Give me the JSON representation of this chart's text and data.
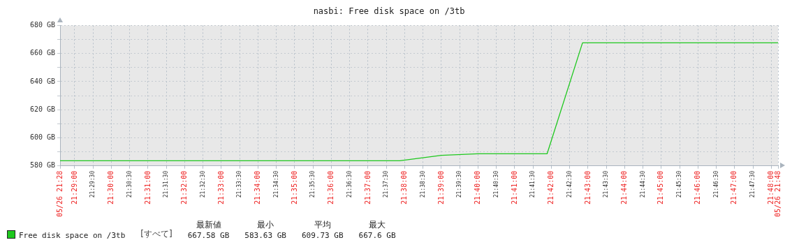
{
  "chart_data": {
    "type": "line",
    "title": "nasbi: Free disk space on /3tb",
    "x": [
      21.476667,
      21.631111,
      21.65,
      21.666667,
      21.698056,
      21.714167,
      21.803056
    ],
    "series": [
      {
        "name": "Free disk space on /3tb",
        "color": "#1ec81e",
        "values": [
          583.63,
          583.63,
          587.5,
          588.6,
          588.6,
          667.6,
          667.58
        ]
      }
    ],
    "xlim": [
      21.476667,
      21.803056
    ],
    "xticks": [
      {
        "value": 21.476667,
        "label": "05/26 21:28"
      },
      {
        "value": 21.483333,
        "label": "21:29:00"
      },
      {
        "value": 21.491667,
        "label": "21:29:30"
      },
      {
        "value": 21.5,
        "label": "21:30:00"
      },
      {
        "value": 21.508333,
        "label": "21:30:30"
      },
      {
        "value": 21.516667,
        "label": "21:31:00"
      },
      {
        "value": 21.525,
        "label": "21:31:30"
      },
      {
        "value": 21.533333,
        "label": "21:32:00"
      },
      {
        "value": 21.541667,
        "label": "21:32:30"
      },
      {
        "value": 21.55,
        "label": "21:33:00"
      },
      {
        "value": 21.558333,
        "label": "21:33:30"
      },
      {
        "value": 21.566667,
        "label": "21:34:00"
      },
      {
        "value": 21.575,
        "label": "21:34:30"
      },
      {
        "value": 21.583333,
        "label": "21:35:00"
      },
      {
        "value": 21.591667,
        "label": "21:35:30"
      },
      {
        "value": 21.6,
        "label": "21:36:00"
      },
      {
        "value": 21.608333,
        "label": "21:36:30"
      },
      {
        "value": 21.616667,
        "label": "21:37:00"
      },
      {
        "value": 21.625,
        "label": "21:37:30"
      },
      {
        "value": 21.633333,
        "label": "21:38:00"
      },
      {
        "value": 21.641667,
        "label": "21:38:30"
      },
      {
        "value": 21.65,
        "label": "21:39:00"
      },
      {
        "value": 21.658333,
        "label": "21:39:30"
      },
      {
        "value": 21.666667,
        "label": "21:40:00"
      },
      {
        "value": 21.675,
        "label": "21:40:30"
      },
      {
        "value": 21.683333,
        "label": "21:41:00"
      },
      {
        "value": 21.691667,
        "label": "21:41:30"
      },
      {
        "value": 21.7,
        "label": "21:42:00"
      },
      {
        "value": 21.708333,
        "label": "21:42:30"
      },
      {
        "value": 21.716667,
        "label": "21:43:00"
      },
      {
        "value": 21.725,
        "label": "21:43:30"
      },
      {
        "value": 21.733333,
        "label": "21:44:00"
      },
      {
        "value": 21.741667,
        "label": "21:44:30"
      },
      {
        "value": 21.75,
        "label": "21:45:00"
      },
      {
        "value": 21.758333,
        "label": "21:45:30"
      },
      {
        "value": 21.766667,
        "label": "21:46:00"
      },
      {
        "value": 21.775,
        "label": "21:46:30"
      },
      {
        "value": 21.783333,
        "label": "21:47:00"
      },
      {
        "value": 21.791667,
        "label": "21:47:30"
      },
      {
        "value": 21.8,
        "label": "21:48:00"
      },
      {
        "value": 21.803056,
        "label": "05/26 21:48"
      }
    ],
    "ylim": [
      580,
      680
    ],
    "yticks": [
      {
        "value": 580,
        "label": "580 GB"
      },
      {
        "value": 590,
        "label": null
      },
      {
        "value": 600,
        "label": "600 GB"
      },
      {
        "value": 610,
        "label": null
      },
      {
        "value": 620,
        "label": "620 GB"
      },
      {
        "value": 630,
        "label": null
      },
      {
        "value": 640,
        "label": "640 GB"
      },
      {
        "value": 650,
        "label": null
      },
      {
        "value": 660,
        "label": "660 GB"
      },
      {
        "value": 670,
        "label": null
      },
      {
        "value": 680,
        "label": "680 GB"
      }
    ],
    "grid": true,
    "legend": "bottom left",
    "marker": "none",
    "line_style": "solid",
    "annotations": [
      "[すべて]",
      "最新値",
      "最小",
      "平均",
      "最大",
      "667.58 GB",
      "583.63 GB",
      "609.73 GB",
      "667.6 GB"
    ]
  }
}
